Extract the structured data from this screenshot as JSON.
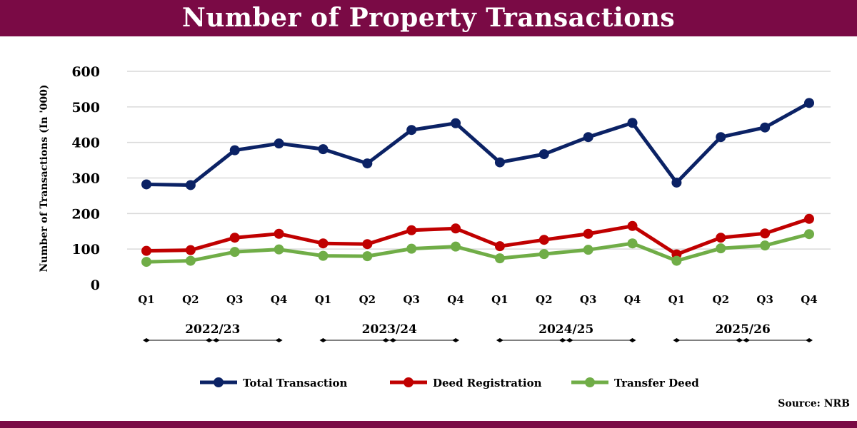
{
  "header": {
    "title": "Number of Property Transactions"
  },
  "source": "Source: NRB",
  "colors": {
    "header_bg": "#7a0a45",
    "total": "#0b2265",
    "deed": "#c00000",
    "transfer": "#70ad47",
    "grid": "#d9d9d9"
  },
  "chart_data": {
    "type": "line",
    "title": "Number of Property Transactions",
    "ylabel": "Number of Transactions (In '000)",
    "xlabel": "",
    "ylim": [
      0,
      600
    ],
    "yticks": [
      0,
      100,
      200,
      300,
      400,
      500,
      600
    ],
    "grid": true,
    "legend_position": "bottom",
    "categories": [
      "Q1",
      "Q2",
      "Q3",
      "Q4",
      "Q1",
      "Q2",
      "Q3",
      "Q4",
      "Q1",
      "Q2",
      "Q3",
      "Q4",
      "Q1",
      "Q2",
      "Q3",
      "Q4"
    ],
    "groups": [
      "2022/23",
      "2023/24",
      "2024/25",
      "2025/26"
    ],
    "series": [
      {
        "name": "Total Transaction",
        "color": "#0b2265",
        "values": [
          282,
          280,
          378,
          397,
          381,
          341,
          435,
          454,
          344,
          367,
          415,
          455,
          287,
          415,
          442,
          511
        ]
      },
      {
        "name": "Deed Registration",
        "color": "#c00000",
        "values": [
          95,
          97,
          132,
          143,
          116,
          114,
          153,
          158,
          108,
          126,
          143,
          165,
          85,
          132,
          144,
          185
        ]
      },
      {
        "name": "Transfer Deed",
        "color": "#70ad47",
        "values": [
          64,
          67,
          92,
          99,
          81,
          80,
          101,
          107,
          74,
          86,
          98,
          116,
          67,
          102,
          110,
          142
        ]
      }
    ]
  }
}
